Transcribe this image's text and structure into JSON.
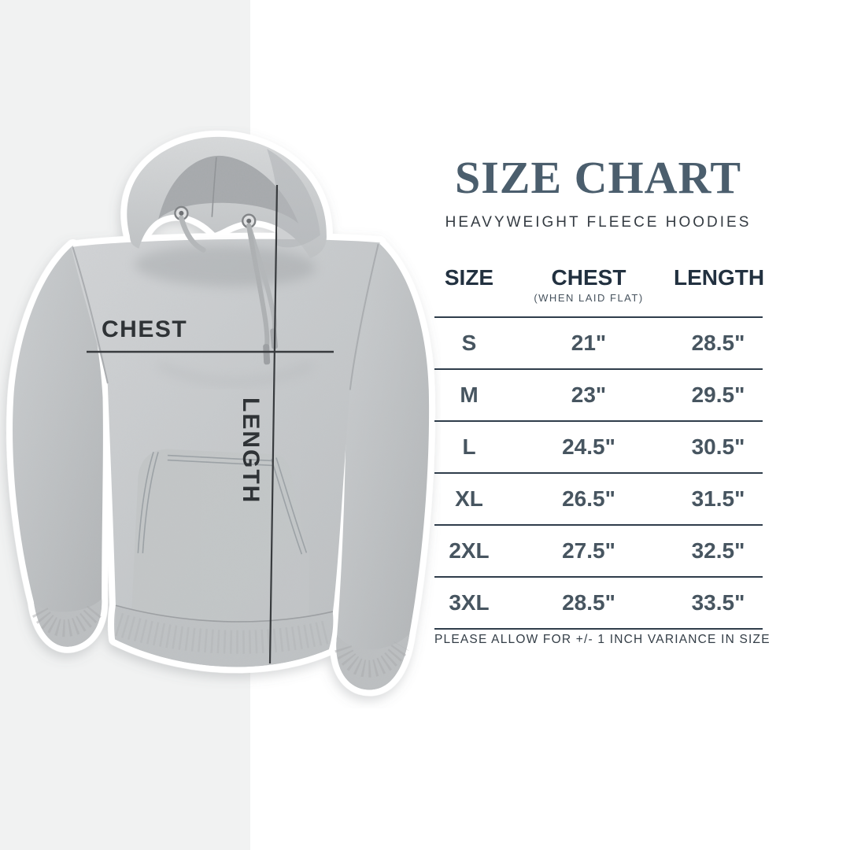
{
  "page": {
    "background_color": "#ffffff",
    "left_band_color": "#f1f2f2",
    "accent_color": "#4b5e6d",
    "line_color": "#383b3e"
  },
  "header": {
    "title": "SIZE CHART",
    "subtitle": "HEAVYWEIGHT FLEECE HOODIES"
  },
  "product_image": {
    "description": "heather-gray-fleece-hoodie-sticker-photo",
    "fabric_color": "#c5c8ca",
    "outline_color": "#ffffff"
  },
  "annotations": {
    "chest_label": "CHEST",
    "length_label": "LENGTH"
  },
  "size_table": {
    "columns": [
      "SIZE",
      "CHEST",
      "LENGTH"
    ],
    "chest_note": "(WHEN LAID FLAT)",
    "rows": [
      {
        "size": "S",
        "chest": "21\"",
        "length": "28.5\""
      },
      {
        "size": "M",
        "chest": "23\"",
        "length": "29.5\""
      },
      {
        "size": "L",
        "chest": "24.5\"",
        "length": "30.5\""
      },
      {
        "size": "XL",
        "chest": "26.5\"",
        "length": "31.5\""
      },
      {
        "size": "2XL",
        "chest": "27.5\"",
        "length": "32.5\""
      },
      {
        "size": "3XL",
        "chest": "28.5\"",
        "length": "33.5\""
      }
    ],
    "footnote": "PLEASE ALLOW FOR +/- 1 INCH VARIANCE IN SIZE"
  },
  "chart_data": {
    "type": "table",
    "title": "SIZE CHART",
    "subtitle": "HEAVYWEIGHT FLEECE HOODIES",
    "columns": [
      "SIZE",
      "CHEST (WHEN LAID FLAT)",
      "LENGTH"
    ],
    "units": "inches",
    "rows": [
      [
        "S",
        "21\"",
        "28.5\""
      ],
      [
        "M",
        "23\"",
        "29.5\""
      ],
      [
        "L",
        "24.5\"",
        "30.5\""
      ],
      [
        "XL",
        "26.5\"",
        "31.5\""
      ],
      [
        "2XL",
        "27.5\"",
        "32.5\""
      ],
      [
        "3XL",
        "28.5\"",
        "33.5\""
      ]
    ],
    "note": "PLEASE ALLOW FOR +/- 1 INCH VARIANCE IN SIZE"
  }
}
